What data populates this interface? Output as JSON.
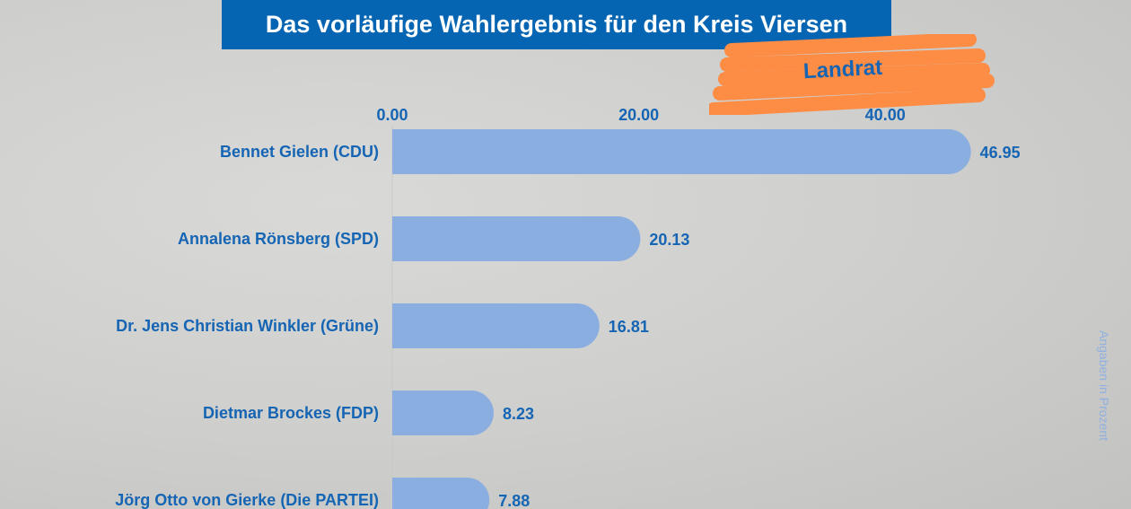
{
  "header": {
    "title": "Das vorläufige Wahlergebnis für den Kreis Viersen",
    "badge": "Landrat",
    "note": "Angaben in Prozent"
  },
  "colors": {
    "bar": "#8aaedf",
    "text": "#1565b4",
    "title_bg": "#0565b2",
    "badge": "#fd8c45"
  },
  "chart_data": {
    "type": "bar",
    "orientation": "horizontal",
    "categories": [
      "Bennet Gielen (CDU)",
      "Annalena Rönsberg (SPD)",
      "Dr. Jens Christian Winkler (Grüne)",
      "Dietmar Brockes (FDP)",
      "Jörg Otto von Gierke (Die PARTEI)"
    ],
    "values": [
      46.95,
      20.13,
      16.81,
      8.23,
      7.88
    ],
    "value_labels": [
      "46.95",
      "20.13",
      "16.81",
      "8.23",
      "7.88"
    ],
    "xticks": [
      "0.00",
      "20.00",
      "40.00"
    ],
    "xtick_values": [
      0,
      20,
      40
    ],
    "axis_position": "top",
    "grid": false
  }
}
